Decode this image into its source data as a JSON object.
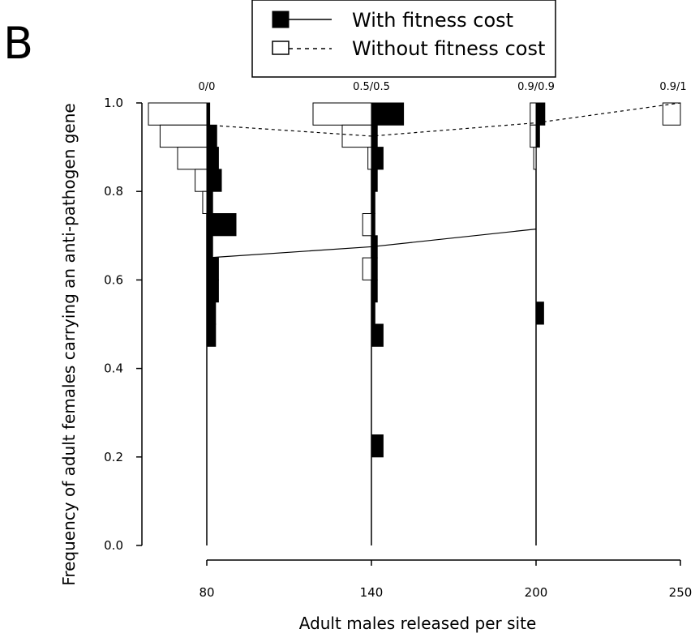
{
  "panel_label": "B",
  "chart_data": {
    "type": "bar",
    "subtype": "violin-histogram",
    "ylabel": "Frequency of adult females carrying an anti-pathogen gene",
    "xlabel": "Adult males released per site",
    "ylim": [
      0,
      1
    ],
    "y_ticks": [
      "0.0",
      "0.2",
      "0.4",
      "0.6",
      "0.8",
      "1.0"
    ],
    "legend": {
      "placement": "top-center",
      "entries": [
        {
          "label": "With fitness cost",
          "fill": "#000000",
          "line": "solid"
        },
        {
          "label": "Without fitness cost",
          "fill": "#ffffff",
          "line": "dashed"
        }
      ]
    },
    "groups": [
      {
        "x_label": "80",
        "top_label": "0/0",
        "with_cost": {
          "mean": 0.65,
          "bins": [
            {
              "y": 0.975,
              "w": 0.05
            },
            {
              "y": 0.925,
              "w": 0.17
            },
            {
              "y": 0.875,
              "w": 0.2
            },
            {
              "y": 0.825,
              "w": 0.25
            },
            {
              "y": 0.775,
              "w": 0.1
            },
            {
              "y": 0.725,
              "w": 0.5
            },
            {
              "y": 0.675,
              "w": 0.1
            },
            {
              "y": 0.625,
              "w": 0.2
            },
            {
              "y": 0.575,
              "w": 0.2
            },
            {
              "y": 0.525,
              "w": 0.15
            },
            {
              "y": 0.475,
              "w": 0.15
            }
          ]
        },
        "without_cost": {
          "mean": 0.95,
          "bins": [
            {
              "y": 0.975,
              "w": 1.0
            },
            {
              "y": 0.925,
              "w": 0.8
            },
            {
              "y": 0.875,
              "w": 0.5
            },
            {
              "y": 0.825,
              "w": 0.2
            },
            {
              "y": 0.775,
              "w": 0.07
            }
          ]
        }
      },
      {
        "x_label": "140",
        "top_label": "0.5/0.5",
        "with_cost": {
          "mean": 0.675,
          "bins": [
            {
              "y": 0.975,
              "w": 0.55
            },
            {
              "y": 0.925,
              "w": 0.1
            },
            {
              "y": 0.875,
              "w": 0.2
            },
            {
              "y": 0.825,
              "w": 0.1
            },
            {
              "y": 0.775,
              "w": 0.06
            },
            {
              "y": 0.725,
              "w": 0.06
            },
            {
              "y": 0.675,
              "w": 0.1
            },
            {
              "y": 0.625,
              "w": 0.1
            },
            {
              "y": 0.575,
              "w": 0.1
            },
            {
              "y": 0.525,
              "w": 0.06
            },
            {
              "y": 0.475,
              "w": 0.2
            },
            {
              "y": 0.225,
              "w": 0.2
            }
          ]
        },
        "without_cost": {
          "mean": 0.925,
          "bins": [
            {
              "y": 0.975,
              "w": 1.0
            },
            {
              "y": 0.925,
              "w": 0.5
            },
            {
              "y": 0.875,
              "w": 0.06
            },
            {
              "y": 0.725,
              "w": 0.15
            },
            {
              "y": 0.625,
              "w": 0.15
            }
          ]
        }
      },
      {
        "x_label": "200",
        "top_label": "0.9/0.9",
        "with_cost": {
          "mean": 0.715,
          "bins": [
            {
              "y": 0.975,
              "w": 0.15
            },
            {
              "y": 0.925,
              "w": 0.06
            },
            {
              "y": 0.525,
              "w": 0.13
            }
          ]
        },
        "without_cost": {
          "mean": 0.955,
          "bins": [
            {
              "y": 0.975,
              "w": 0.1
            },
            {
              "y": 0.925,
              "w": 0.1
            },
            {
              "y": 0.875,
              "w": 0.04
            }
          ]
        }
      },
      {
        "x_label": "250",
        "top_label": "0.9/1",
        "with_cost": null,
        "without_cost": {
          "mean": 1.0,
          "bins": [
            {
              "y": 0.975,
              "w": 0.3
            }
          ]
        }
      }
    ]
  }
}
